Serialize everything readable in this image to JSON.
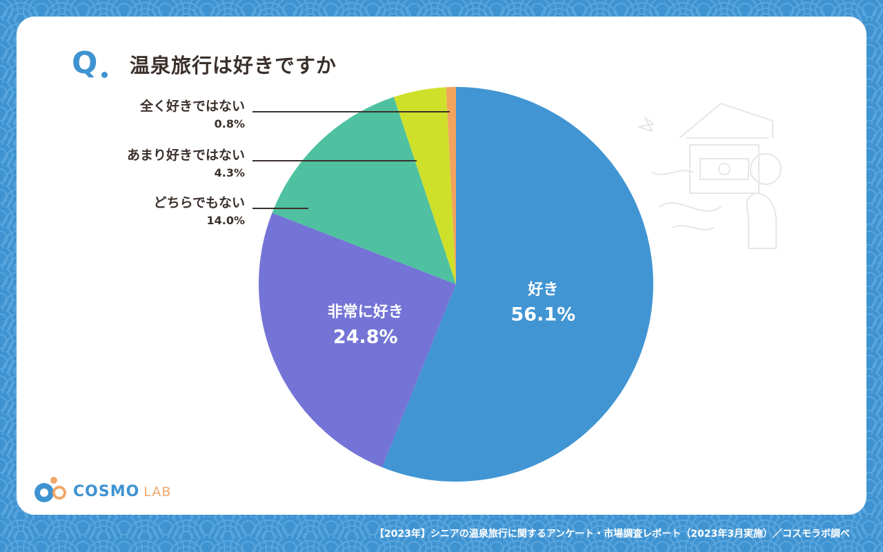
{
  "header": {
    "q_mark": "Q",
    "title": "温泉旅行は好きですか"
  },
  "chart_data": {
    "type": "pie",
    "title": "温泉旅行は好きですか",
    "start_angle_deg": 0,
    "direction": "clockwise",
    "slices": [
      {
        "name": "好き",
        "value": 56.1,
        "value_label": "56.1%",
        "color": "#4195d3",
        "label_style": "inside"
      },
      {
        "name": "非常に好き",
        "value": 24.8,
        "value_label": "24.8%",
        "color": "#7474d6",
        "label_style": "inside"
      },
      {
        "name": "どちらでもない",
        "value": 14.0,
        "value_label": "14.0%",
        "color": "#4fc1a0",
        "label_style": "callout"
      },
      {
        "name": "あまり好きではない",
        "value": 4.3,
        "value_label": "4.3%",
        "color": "#cfe02b",
        "label_style": "callout"
      },
      {
        "name": "全く好きではない",
        "value": 0.8,
        "value_label": "0.8%",
        "color": "#f2a35c",
        "label_style": "callout"
      }
    ]
  },
  "logo": {
    "name": "COSMO",
    "suffix": "LAB"
  },
  "footer": {
    "source": "【2023年】シニアの温泉旅行に関するアンケート・市場調査レポート（2023年3月実施）／コスモラボ調べ"
  },
  "colors": {
    "background": "#3f93d1",
    "card": "#ffffff",
    "text": "#3a302b",
    "accent": "#3f93d1",
    "logo_accent": "#f0a86c"
  }
}
